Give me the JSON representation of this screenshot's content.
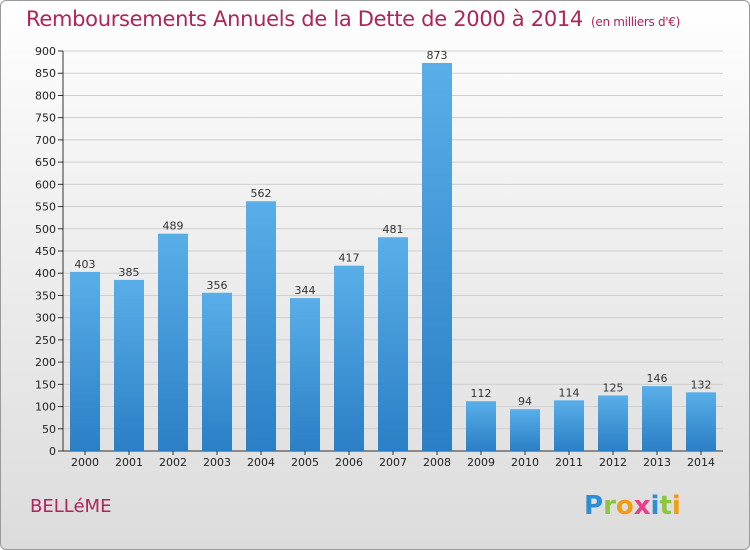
{
  "title": "Remboursements Annuels de la Dette de 2000 à 2014",
  "unit": "(en milliers d'€)",
  "commune": "BELLéME",
  "brand": {
    "letters": [
      "P",
      "r",
      "o",
      "x",
      "i",
      "t",
      "i"
    ],
    "colors": [
      "#2a8fd6",
      "#8cc63f",
      "#f39c12",
      "#e83e8c",
      "#2a8fd6",
      "#8cc63f",
      "#f39c12"
    ]
  },
  "colors": {
    "bar": "#4a9fe0",
    "bar_dark": "#2e86cf",
    "title": "#b0245a",
    "grid": "#cfcfcf"
  },
  "chart_data": {
    "type": "bar",
    "title": "Remboursements Annuels de la Dette de 2000 à 2014",
    "xlabel": "",
    "ylabel": "",
    "categories": [
      "2000",
      "2001",
      "2002",
      "2003",
      "2004",
      "2005",
      "2006",
      "2007",
      "2008",
      "2009",
      "2010",
      "2011",
      "2012",
      "2013",
      "2014"
    ],
    "values": [
      403,
      385,
      489,
      356,
      562,
      344,
      417,
      481,
      873,
      112,
      94,
      114,
      125,
      146,
      132
    ],
    "ylim": [
      0,
      900
    ],
    "yticks": [
      0,
      50,
      100,
      150,
      200,
      250,
      300,
      350,
      400,
      450,
      500,
      550,
      600,
      650,
      700,
      750,
      800,
      850,
      900
    ],
    "grid": true,
    "data_labels": true
  }
}
